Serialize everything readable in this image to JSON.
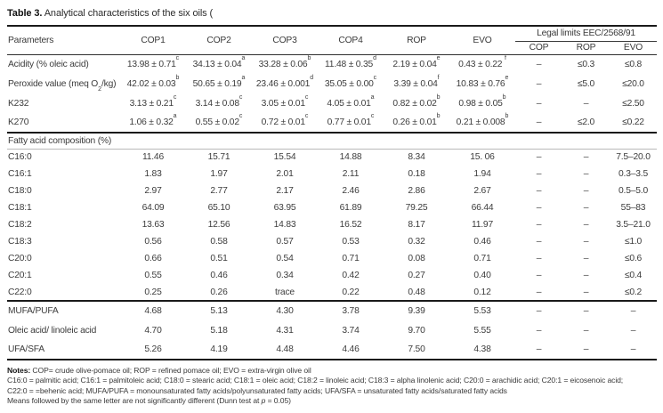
{
  "title_parts": [
    {
      "b": "Table 3."
    },
    " Analytical characteristics of the six oils ("
  ],
  "table": {
    "columns": {
      "parameters": "Parameters",
      "oils": [
        "COP1",
        "COP2",
        "COP3",
        "COP4",
        "ROP",
        "EVO"
      ],
      "legal_title": "Legal limits EEC/2568/91",
      "legal": [
        "COP",
        "ROP",
        "EVO"
      ]
    },
    "sections": [
      {
        "rows": [
          {
            "param": "Acidity (% oleic acid)",
            "values": [
              {
                "v": "13.98 ± 0.71",
                "s": "c"
              },
              {
                "v": "34.13 ± 0.04",
                "s": "a"
              },
              {
                "v": "33.28 ± 0.06",
                "s": "b"
              },
              {
                "v": "11.48 ± 0.35",
                "s": "d"
              },
              {
                "v": "2.19 ± 0.04",
                "s": "e"
              },
              {
                "v": "0.43 ± 0.22 ",
                "s": "f"
              }
            ],
            "limits": [
              "–",
              "≤0.3",
              "≤0.8"
            ]
          },
          {
            "param": [
              "Peroxide value (meq O",
              {
                "sub": "2"
              },
              "/kg)"
            ],
            "values": [
              {
                "v": "42.02 ± 0.03",
                "s": "b"
              },
              {
                "v": "50.65 ± 0.19",
                "s": "a"
              },
              {
                "v": "23.46 ± 0.001",
                "s": "d"
              },
              {
                "v": "35.05 ± 0.00",
                "s": "c"
              },
              {
                "v": "3.39 ± 0.04",
                "s": "f"
              },
              {
                "v": "10.83 ± 0.76",
                "s": "e"
              }
            ],
            "limits": [
              "–",
              "≤5.0",
              "≤20.0"
            ]
          },
          {
            "param": "K232",
            "values": [
              {
                "v": "3.13 ± 0.21",
                "s": "c"
              },
              {
                "v": "3.14 ± 0.08",
                "s": "c"
              },
              {
                "v": "3.05 ± 0.01",
                "s": "c"
              },
              {
                "v": "4.05 ± 0.01",
                "s": "a"
              },
              {
                "v": "0.82 ± 0.02",
                "s": "b"
              },
              {
                "v": "0.98 ± 0.05",
                "s": "b"
              }
            ],
            "limits": [
              "–",
              "–",
              "≤2.50"
            ]
          },
          {
            "param": "K270",
            "values": [
              {
                "v": "1.06 ± 0.32",
                "s": "a"
              },
              {
                "v": "0.55 ± 0.02",
                "s": "c"
              },
              {
                "v": "0.72 ± 0.01",
                "s": "c"
              },
              {
                "v": "0.77 ± 0.01",
                "s": "c"
              },
              {
                "v": "0.26 ± 0.01",
                "s": "b"
              },
              {
                "v": "0.21 ± 0.008",
                "s": "b"
              }
            ],
            "limits": [
              "–",
              "≤2.0",
              "≤0.22"
            ]
          }
        ]
      },
      {
        "header": "Fatty acid composition (%)",
        "rows": [
          {
            "param": "C16:0",
            "values": [
              "11.46",
              "15.71",
              "15.54",
              "14.88",
              "8.34",
              "15. 06"
            ],
            "limits": [
              "–",
              "–",
              "7.5–20.0"
            ]
          },
          {
            "param": "C16:1",
            "values": [
              "1.83",
              "1.97",
              "2.01",
              "2.11",
              "0.18",
              "1.94"
            ],
            "limits": [
              "–",
              "–",
              "0.3–3.5"
            ]
          },
          {
            "param": "C18:0",
            "values": [
              "2.97",
              "2.77",
              "2.17",
              "2.46",
              "2.86",
              "2.67"
            ],
            "limits": [
              "–",
              "–",
              "0.5–5.0"
            ]
          },
          {
            "param": "C18:1",
            "values": [
              "64.09",
              "65.10",
              "63.95",
              "61.89",
              "79.25",
              "66.44"
            ],
            "limits": [
              "–",
              "–",
              "55–83"
            ]
          },
          {
            "param": "C18:2",
            "values": [
              "13.63",
              "12.56",
              "14.83",
              "16.52",
              "8.17",
              "11.97"
            ],
            "limits": [
              "–",
              "–",
              "3.5–21.0"
            ]
          },
          {
            "param": "C18:3",
            "values": [
              "0.56",
              "0.58",
              "0.57",
              "0.53",
              "0.32",
              "0.46"
            ],
            "limits": [
              "–",
              "–",
              "≤1.0"
            ]
          },
          {
            "param": "C20:0",
            "values": [
              "0.66",
              "0.51",
              "0.54",
              "0.71",
              "0.08",
              "0.71"
            ],
            "limits": [
              "–",
              "–",
              "≤0.6"
            ]
          },
          {
            "param": "C20:1",
            "values": [
              "0.55",
              "0.46",
              "0.34",
              "0.42",
              "0.27",
              "0.40"
            ],
            "limits": [
              "–",
              "–",
              "≤0.4"
            ]
          },
          {
            "param": "C22:0",
            "values": [
              "0.25",
              "0.26",
              "trace",
              "0.22",
              "0.48",
              "0.12"
            ],
            "limits": [
              "–",
              "–",
              "≤0.2"
            ]
          }
        ]
      },
      {
        "rows": [
          {
            "param": "MUFA/PUFA",
            "values": [
              "4.68",
              "5.13",
              "4.30",
              "3.78",
              "9.39",
              "5.53"
            ],
            "limits": [
              "–",
              "–",
              "–"
            ]
          },
          {
            "param": "Oleic acid/ linoleic acid",
            "values": [
              "4.70",
              "5.18",
              "4.31",
              "3.74",
              "9.70",
              "5.55"
            ],
            "limits": [
              "–",
              "–",
              "–"
            ]
          },
          {
            "param": "UFA/SFA",
            "values": [
              "5.26",
              "4.19",
              "4.48",
              "4.46",
              "7.50",
              "4.38"
            ],
            "limits": [
              "–",
              "–",
              "–"
            ]
          }
        ]
      }
    ]
  },
  "notes": [
    [
      {
        "b": "Notes:"
      },
      " COP= crude olive-pomace oil; ROP = refined pomace oil; EVO = extra-virgin olive oil"
    ],
    [
      "C16:0 = palmitic acid; C16:1 = palmitoleic acid; C18:0 = stearic acid; C18:1 = oleic acid; C18:2 = linoleic acid; C18:3 = alpha linolenic acid; C20:0 = arachidic acid; C20:1 = eicosenoic acid;"
    ],
    [
      "C22:0 = =behenic acid; MUFA/PUFA = monounsaturated fatty acids/polyunsaturated fatty acids; UFA/SFA = unsaturated fatty acids/saturated fatty acids"
    ],
    [
      "Means followed by the same letter are not significantly different (Dunn test at ",
      {
        "i": "p"
      },
      " = 0.05)"
    ]
  ],
  "colors": {
    "rule_heavy": "#1a1a1a",
    "rule_light": "#b9b9b9",
    "text": "#3c3c3c"
  }
}
